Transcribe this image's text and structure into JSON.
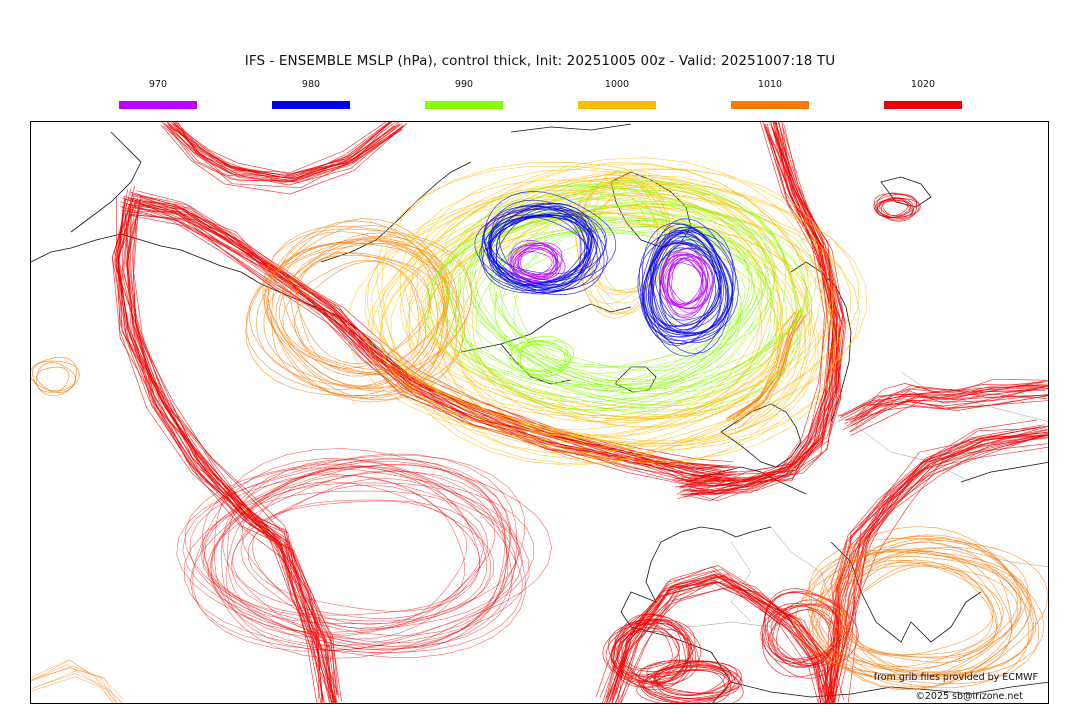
{
  "title": "IFS - ENSEMBLE MSLP (hPa), control thick, Init: 20251005 00z - Valid: 20251007:18 TU",
  "legend": [
    {
      "label": "970",
      "color": "#bb00ff"
    },
    {
      "label": "980",
      "color": "#0000ee"
    },
    {
      "label": "990",
      "color": "#88ff00"
    },
    {
      "label": "1000",
      "color": "#ffbb00"
    },
    {
      "label": "1010",
      "color": "#ff7700"
    },
    {
      "label": "1020",
      "color": "#ee0000"
    }
  ],
  "credits": {
    "source": "from grib files provided by ECMWF",
    "copyright": "©2025 sb@irizone.net"
  }
}
